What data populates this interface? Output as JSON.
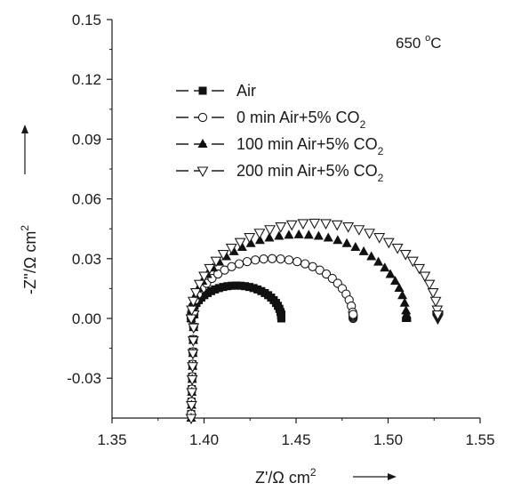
{
  "chart_data": {
    "type": "scatter",
    "xlabel": "Z'/Ω cm²",
    "xlabel_main": "Z'/Ω cm",
    "xlabel_sup": "2",
    "ylabel_main": "-Z''/Ω cm",
    "ylabel_sup": "2",
    "annotation_main": "650 ",
    "annotation_sup": "o",
    "annotation_unit": "C",
    "xlim": [
      1.35,
      1.55
    ],
    "ylim": [
      -0.05,
      0.15
    ],
    "x_ticks": [
      1.35,
      1.4,
      1.45,
      1.5,
      1.55
    ],
    "x_tick_labels": [
      "1.35",
      "1.40",
      "1.45",
      "1.50",
      "1.55"
    ],
    "y_ticks": [
      -0.03,
      0.0,
      0.03,
      0.06,
      0.09,
      0.12,
      0.15
    ],
    "y_tick_labels": [
      "-0.03",
      "0.00",
      "0.03",
      "0.06",
      "0.09",
      "0.12",
      "0.15"
    ],
    "legend_position": "top-left",
    "series": [
      {
        "name": "Air",
        "label_main": "Air",
        "label_sub": "",
        "marker": "square-filled",
        "R0": 1.393,
        "Rt": 1.442,
        "peak": 0.0165,
        "tail_bottom": -0.048,
        "n_arc": 32
      },
      {
        "name": "0 min Air+5% CO2",
        "label_main": "0     min Air+5% CO",
        "label_sub": "2",
        "marker": "circle-open",
        "R0": 1.393,
        "Rt": 1.481,
        "peak": 0.03,
        "tail_bottom": -0.048,
        "n_arc": 30
      },
      {
        "name": "100 min Air+5% CO2",
        "label_main": "100 min Air+5% CO",
        "label_sub": "2",
        "marker": "triangle-up-filled",
        "R0": 1.393,
        "Rt": 1.51,
        "peak": 0.042,
        "tail_bottom": -0.05,
        "n_arc": 34
      },
      {
        "name": "200 min Air+5% CO2",
        "label_main": "200 min Air+5% CO",
        "label_sub": "2",
        "marker": "triangle-down-open",
        "R0": 1.393,
        "Rt": 1.527,
        "peak": 0.048,
        "tail_bottom": -0.05,
        "n_arc": 34
      }
    ]
  }
}
